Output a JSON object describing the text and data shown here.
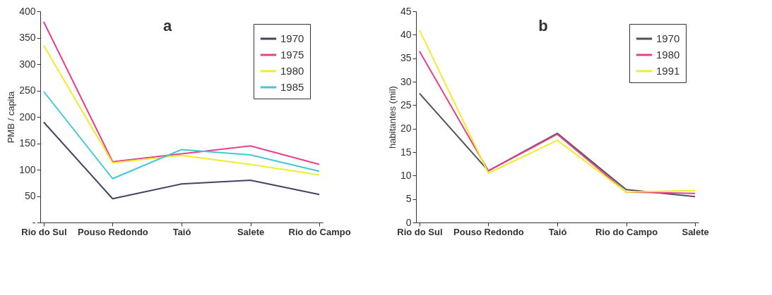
{
  "chart_data": [
    {
      "type": "line",
      "title": "a",
      "ylabel": "PMB / capita",
      "categories": [
        "Rio do Sul",
        "Pouso Redondo",
        "Taió",
        "Salete",
        "Rio do Campo"
      ],
      "ylim": [
        0,
        400
      ],
      "yticks": [
        {
          "value": 0,
          "label": "-"
        },
        50,
        100,
        150,
        200,
        250,
        300,
        350,
        400
      ],
      "grid": false,
      "legend": "top right",
      "series": [
        {
          "name": "1970",
          "color": "#4b4060",
          "values": [
            190,
            45,
            73,
            80,
            53
          ]
        },
        {
          "name": "1975",
          "color": "#e8408a",
          "values": [
            380,
            115,
            130,
            145,
            110
          ]
        },
        {
          "name": "1980",
          "color": "#f0ec2c",
          "values": [
            335,
            113,
            127,
            110,
            90
          ]
        },
        {
          "name": "1985",
          "color": "#40c8d8",
          "values": [
            248,
            83,
            138,
            128,
            97
          ]
        }
      ]
    },
    {
      "type": "line",
      "title": "b",
      "ylabel": "habitantes (mil)",
      "categories": [
        "Rio do Sul",
        "Pouso Redondo",
        "Taió",
        "Rio do Campo",
        "Salete"
      ],
      "ylim": [
        0,
        45
      ],
      "yticks": [
        0,
        5,
        10,
        15,
        20,
        25,
        30,
        35,
        40,
        45
      ],
      "grid": false,
      "legend": "top right",
      "series": [
        {
          "name": "1970",
          "color": "#505058",
          "values": [
            27.5,
            11,
            19,
            7,
            5.5
          ]
        },
        {
          "name": "1980",
          "color": "#e8408a",
          "values": [
            36.5,
            11,
            18.8,
            6.5,
            6.2
          ]
        },
        {
          "name": "1991",
          "color": "#f0ec2c",
          "values": [
            41,
            10.5,
            17.5,
            6.5,
            6.8
          ]
        }
      ]
    }
  ]
}
